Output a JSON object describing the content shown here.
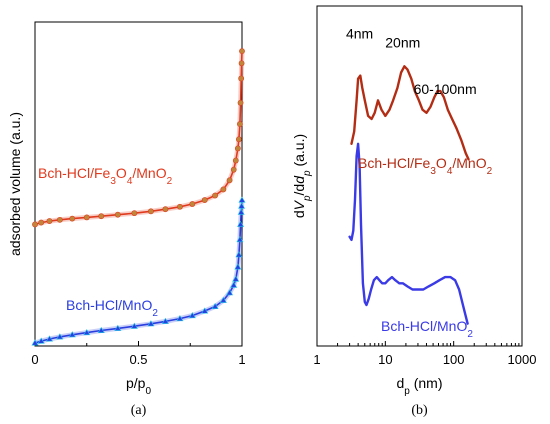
{
  "chart_data": [
    {
      "type": "line",
      "caption": "(a)",
      "xlabel": "p/p",
      "xlabel_sub": "0",
      "ylabel": "adsorbed volume (a.u.)",
      "xlim": [
        0,
        1
      ],
      "ylim": [
        0,
        100
      ],
      "xticks": [
        0,
        0.5,
        1
      ],
      "xtick_labels": [
        "0",
        "0.5",
        "1"
      ],
      "yticks": [],
      "grid": false,
      "legend": "inline labels",
      "series": [
        {
          "name": "Bch-HCl/Fe3O4/MnO2",
          "label_parts": [
            [
              "Bch-HCl/Fe",
              ""
            ],
            [
              "3",
              "sub"
            ],
            [
              "O",
              ""
            ],
            [
              "4",
              "sub"
            ],
            [
              "/MnO",
              ""
            ],
            [
              "2",
              "sub"
            ]
          ],
          "color": "#e03a1e",
          "marker_color": "#c0873a",
          "x": [
            0.0,
            0.03,
            0.07,
            0.12,
            0.18,
            0.25,
            0.32,
            0.4,
            0.48,
            0.56,
            0.63,
            0.7,
            0.76,
            0.82,
            0.87,
            0.91,
            0.94,
            0.96,
            0.97,
            0.98,
            0.985,
            0.99,
            0.993,
            0.996,
            0.998,
            1.0
          ],
          "y": [
            40.0,
            40.6,
            41.1,
            41.5,
            41.9,
            42.3,
            42.7,
            43.2,
            43.7,
            44.3,
            45.0,
            45.8,
            46.7,
            48.0,
            49.5,
            51.5,
            54.5,
            58.0,
            61.0,
            65.0,
            68.0,
            73.0,
            80.0,
            88.0,
            93.0,
            97.0
          ]
        },
        {
          "name": "Bch-HCl/MnO2",
          "label_parts": [
            [
              "Bch-HCl/MnO",
              ""
            ],
            [
              "2",
              "sub"
            ]
          ],
          "color": "#2a3ee0",
          "marker_color": "#1fc4e8",
          "x": [
            0.0,
            0.03,
            0.07,
            0.12,
            0.18,
            0.25,
            0.32,
            0.4,
            0.48,
            0.56,
            0.63,
            0.7,
            0.76,
            0.82,
            0.87,
            0.91,
            0.94,
            0.96,
            0.97,
            0.98,
            0.985,
            0.99,
            0.993,
            0.996,
            0.998,
            1.0
          ],
          "y": [
            1.0,
            1.6,
            2.3,
            3.0,
            3.7,
            4.4,
            5.1,
            5.8,
            6.5,
            7.3,
            8.1,
            9.0,
            10.0,
            11.5,
            13.0,
            15.0,
            17.5,
            20.0,
            22.0,
            26.0,
            30.0,
            35.0,
            40.0,
            44.0,
            46.0,
            48.0
          ]
        }
      ]
    },
    {
      "type": "line",
      "caption": "(b)",
      "xlabel": "d",
      "xlabel_sub": "p",
      "xlabel_suffix": " (nm)",
      "ylabel_parts": [
        [
          "d",
          ""
        ],
        [
          "V",
          "i"
        ],
        [
          "p",
          "isub"
        ],
        [
          "/d",
          ""
        ],
        [
          "d",
          "i"
        ],
        [
          "p",
          "isub"
        ],
        [
          " (a.u.)",
          ""
        ]
      ],
      "xscale": "log",
      "xlim": [
        1,
        1000
      ],
      "ylim": [
        0,
        100
      ],
      "xticks": [
        1,
        10,
        100,
        1000
      ],
      "xtick_labels": [
        "1",
        "10",
        "100",
        "1000"
      ],
      "yticks": [],
      "grid": false,
      "legend": "inline labels",
      "annotations": [
        {
          "text": "4nm",
          "x": 4.2,
          "y": 96
        },
        {
          "text": "20nm",
          "x": 18,
          "y": 93
        },
        {
          "text": "60-100nm",
          "x": 75,
          "y": 78
        }
      ],
      "series": [
        {
          "name": "Bch-HCl/Fe3O4/MnO2",
          "label_parts": [
            [
              "Bch-HCl/Fe",
              ""
            ],
            [
              "3",
              "sub"
            ],
            [
              "O",
              ""
            ],
            [
              "4",
              "sub"
            ],
            [
              "/MnO",
              ""
            ],
            [
              "2",
              "sub"
            ]
          ],
          "color": "#b32d14",
          "x": [
            3.2,
            3.5,
            3.8,
            4.0,
            4.3,
            4.6,
            5.0,
            5.6,
            6.3,
            7.0,
            7.8,
            8.8,
            10,
            11.5,
            13,
            15,
            17,
            19,
            21,
            24,
            27,
            31,
            35,
            40,
            46,
            52,
            58,
            64,
            72,
            82,
            95,
            110,
            130,
            150,
            165
          ],
          "y": [
            62,
            66,
            76,
            83,
            84,
            80,
            76,
            71,
            70,
            72,
            76,
            73,
            71,
            73,
            76,
            80,
            85,
            87,
            86,
            83,
            79,
            76,
            73,
            72,
            74,
            77,
            79,
            79,
            77,
            73,
            70,
            67,
            63,
            59,
            57
          ]
        },
        {
          "name": "Bch-HCl/MnO2",
          "label_parts": [
            [
              "Bch-HCl/MnO",
              ""
            ],
            [
              "2",
              "sub"
            ]
          ],
          "color": "#3a3ae6",
          "x": [
            3.0,
            3.2,
            3.4,
            3.6,
            3.8,
            4.0,
            4.2,
            4.4,
            4.7,
            5.0,
            5.3,
            5.7,
            6.2,
            6.8,
            7.5,
            8.2,
            9.0,
            10,
            11,
            12.5,
            14,
            16,
            18,
            21,
            25,
            30,
            36,
            43,
            52,
            62,
            75,
            90,
            105,
            120,
            140,
            160
          ],
          "y": [
            32,
            31,
            34,
            44,
            58,
            62,
            55,
            36,
            17,
            11,
            10,
            12,
            15,
            18,
            19,
            18,
            17,
            17,
            18,
            19,
            18,
            17,
            17,
            16,
            15,
            15,
            15,
            16,
            17,
            18,
            19,
            19,
            18,
            15,
            9,
            4
          ]
        }
      ]
    }
  ]
}
